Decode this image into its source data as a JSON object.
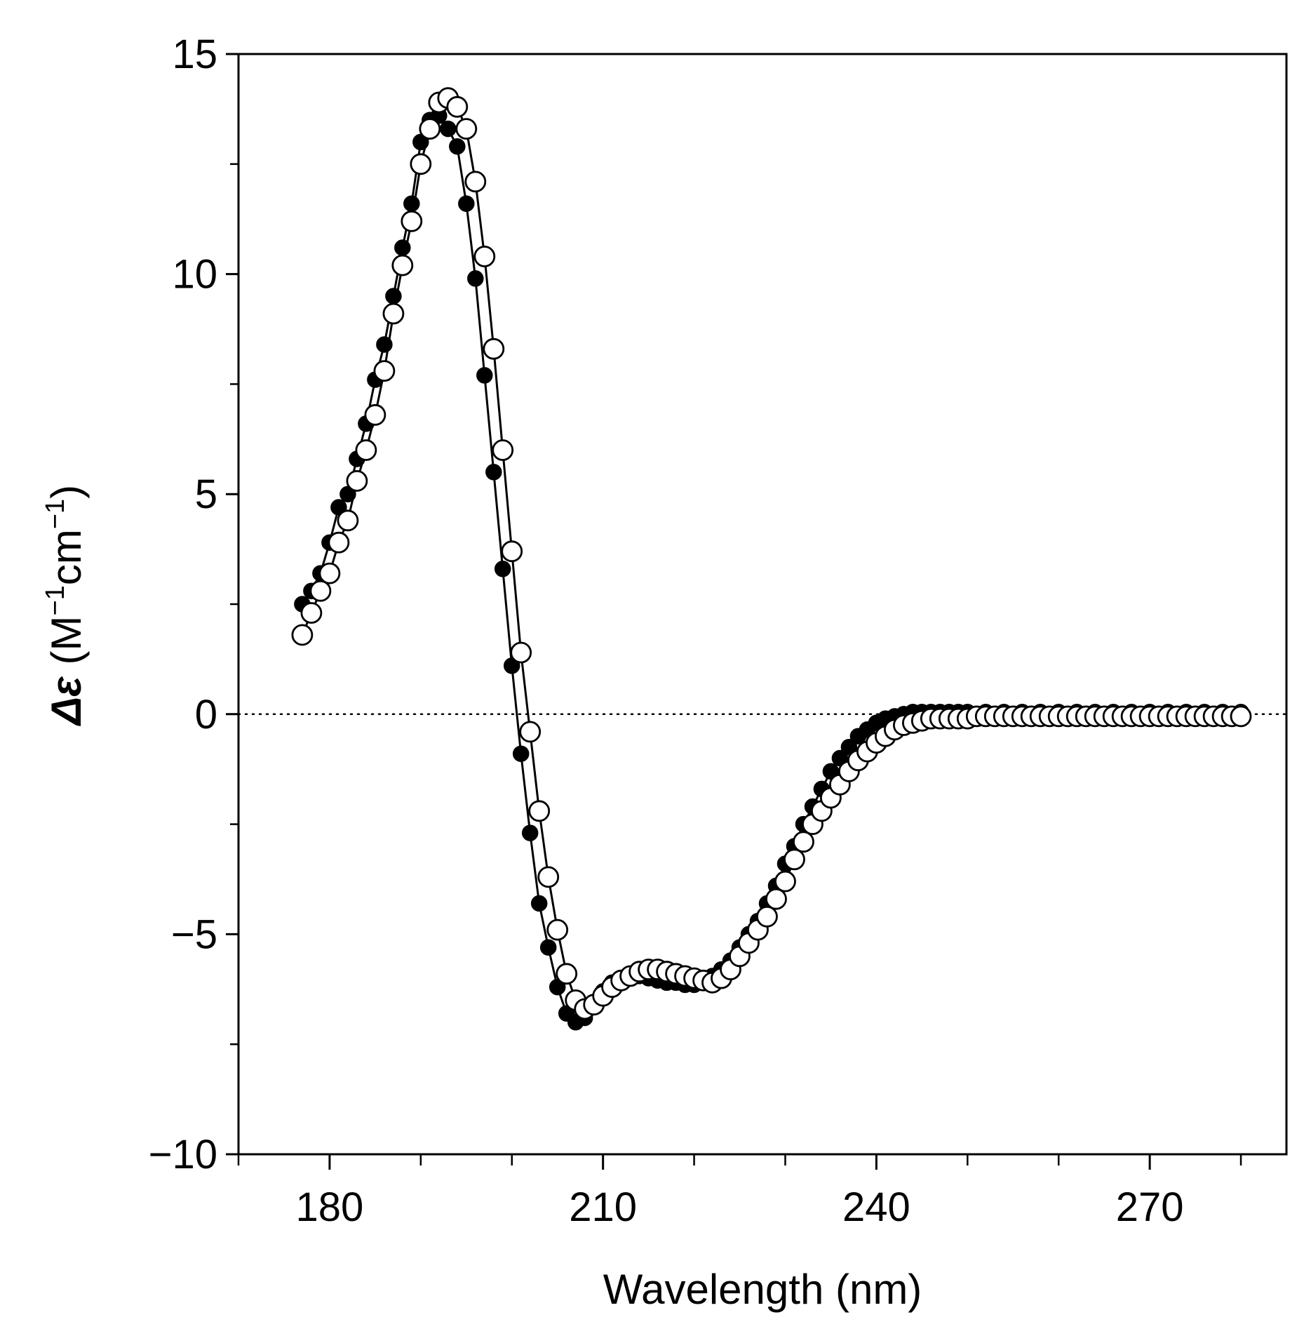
{
  "chart_data": {
    "type": "scatter",
    "title": "",
    "xlabel": "Wavelength (nm)",
    "ylabel": {
      "symbol": "Δε",
      "open": " (M",
      "sup1": "−1",
      "mid": "cm",
      "sup2": "−1",
      "close": ")"
    },
    "xlim": [
      170,
      285
    ],
    "ylim": [
      -10,
      15
    ],
    "x_ticks": [
      180,
      210,
      240,
      270
    ],
    "x_tick_labels": [
      "180",
      "210",
      "240",
      "270"
    ],
    "x_minor_ticks": [
      170,
      190,
      200,
      220,
      230,
      250,
      260,
      280
    ],
    "y_ticks": [
      15,
      10,
      5,
      0,
      -5,
      -10
    ],
    "y_tick_labels": [
      "15",
      "10",
      "5",
      "0",
      "−5",
      "−10"
    ],
    "y_minor_ticks": [
      12.5,
      7.5,
      2.5,
      -2.5,
      -7.5
    ],
    "zero_line": {
      "y": 0,
      "style": "dotted"
    },
    "grid": false,
    "colors": {
      "axis": "#000000",
      "marker_fill": "#000000",
      "marker_open_fill": "#ffffff",
      "line": "#000000"
    },
    "series": [
      {
        "name": "filled",
        "marker": "filled-circle",
        "x": [
          177,
          178,
          179,
          180,
          181,
          182,
          183,
          184,
          185,
          186,
          187,
          188,
          189,
          190,
          191,
          192,
          193,
          194,
          195,
          196,
          197,
          198,
          199,
          200,
          201,
          202,
          203,
          204,
          205,
          206,
          207,
          208,
          209,
          210,
          211,
          212,
          213,
          214,
          215,
          216,
          217,
          218,
          219,
          220,
          221,
          222,
          223,
          224,
          225,
          226,
          227,
          228,
          229,
          230,
          231,
          232,
          233,
          234,
          235,
          236,
          237,
          238,
          239,
          240,
          241,
          242,
          243,
          244,
          245,
          246,
          247,
          248,
          249,
          250,
          252,
          254,
          256,
          258,
          260,
          262,
          264,
          266,
          268,
          270,
          272,
          274,
          276,
          278,
          280
        ],
        "y": [
          2.5,
          2.8,
          3.2,
          3.9,
          4.7,
          5.0,
          5.8,
          6.6,
          7.6,
          8.4,
          9.5,
          10.6,
          11.6,
          13.0,
          13.5,
          13.6,
          13.3,
          12.9,
          11.6,
          9.9,
          7.7,
          5.5,
          3.3,
          1.1,
          -0.9,
          -2.7,
          -4.3,
          -5.3,
          -6.2,
          -6.8,
          -7.0,
          -6.9,
          -6.6,
          -6.3,
          -6.1,
          -6.0,
          -5.95,
          -5.95,
          -6.0,
          -6.05,
          -6.1,
          -6.1,
          -6.15,
          -6.15,
          -6.1,
          -5.95,
          -5.8,
          -5.6,
          -5.3,
          -5.0,
          -4.7,
          -4.3,
          -3.9,
          -3.4,
          -3.0,
          -2.5,
          -2.1,
          -1.7,
          -1.3,
          -1.0,
          -0.75,
          -0.5,
          -0.35,
          -0.2,
          -0.1,
          -0.05,
          0.0,
          0.05,
          0.05,
          0.05,
          0.05,
          0.05,
          0.05,
          0.05,
          0.05,
          0.05,
          0.05,
          0.05,
          0.05,
          0.05,
          0.05,
          0.05,
          0.05,
          0.05,
          0.05,
          0.05,
          0.05,
          0.05,
          0.05
        ]
      },
      {
        "name": "open",
        "marker": "open-circle",
        "x": [
          177,
          178,
          179,
          180,
          181,
          182,
          183,
          184,
          185,
          186,
          187,
          188,
          189,
          190,
          191,
          192,
          193,
          194,
          195,
          196,
          197,
          198,
          199,
          200,
          201,
          202,
          203,
          204,
          205,
          206,
          207,
          208,
          209,
          210,
          211,
          212,
          213,
          214,
          215,
          216,
          217,
          218,
          219,
          220,
          221,
          222,
          223,
          224,
          225,
          226,
          227,
          228,
          229,
          230,
          231,
          232,
          233,
          234,
          235,
          236,
          237,
          238,
          239,
          240,
          241,
          242,
          243,
          244,
          245,
          246,
          247,
          248,
          249,
          250,
          251,
          252,
          253,
          254,
          255,
          256,
          257,
          258,
          259,
          260,
          261,
          262,
          263,
          264,
          265,
          266,
          267,
          268,
          269,
          270,
          271,
          272,
          273,
          274,
          275,
          276,
          277,
          278,
          279,
          280
        ],
        "y": [
          1.8,
          2.3,
          2.8,
          3.2,
          3.9,
          4.4,
          5.3,
          6.0,
          6.8,
          7.8,
          9.1,
          10.2,
          11.2,
          12.5,
          13.3,
          13.9,
          14.0,
          13.8,
          13.3,
          12.1,
          10.4,
          8.3,
          6.0,
          3.7,
          1.4,
          -0.4,
          -2.2,
          -3.7,
          -4.9,
          -5.9,
          -6.5,
          -6.7,
          -6.6,
          -6.4,
          -6.2,
          -6.05,
          -5.95,
          -5.85,
          -5.8,
          -5.8,
          -5.85,
          -5.9,
          -5.95,
          -6.0,
          -6.05,
          -6.1,
          -6.0,
          -5.8,
          -5.5,
          -5.2,
          -4.9,
          -4.6,
          -4.2,
          -3.8,
          -3.3,
          -2.9,
          -2.5,
          -2.2,
          -1.9,
          -1.6,
          -1.3,
          -1.05,
          -0.85,
          -0.65,
          -0.5,
          -0.35,
          -0.25,
          -0.2,
          -0.15,
          -0.1,
          -0.1,
          -0.1,
          -0.1,
          -0.1,
          -0.05,
          -0.05,
          -0.05,
          -0.05,
          -0.05,
          -0.05,
          -0.05,
          -0.05,
          -0.05,
          -0.05,
          -0.05,
          -0.05,
          -0.05,
          -0.05,
          -0.05,
          -0.05,
          -0.05,
          -0.05,
          -0.05,
          -0.05,
          -0.05,
          -0.05,
          -0.05,
          -0.05,
          -0.05,
          -0.05,
          -0.05,
          -0.05,
          -0.05,
          -0.05
        ]
      }
    ]
  }
}
